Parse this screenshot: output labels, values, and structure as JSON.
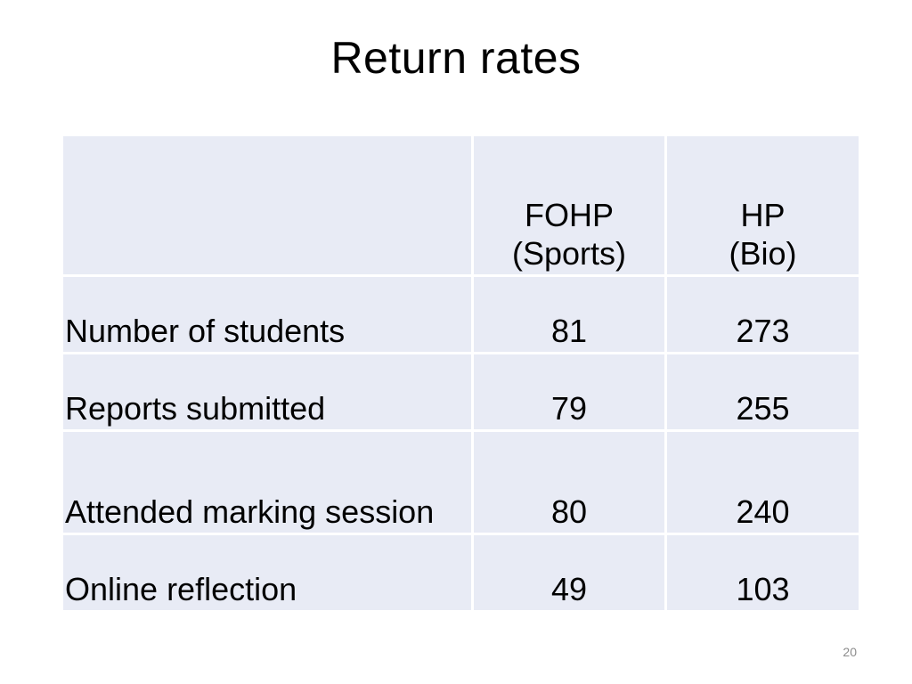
{
  "slide": {
    "title": "Return rates",
    "page_number": "20"
  },
  "table": {
    "columns": [
      {
        "line1": "FOHP",
        "line2": "(Sports)"
      },
      {
        "line1": "HP",
        "line2": "(Bio)"
      }
    ],
    "rows": [
      {
        "label": "Number of students",
        "values": [
          "81",
          "273"
        ]
      },
      {
        "label": "Reports submitted",
        "values": [
          "79",
          "255"
        ]
      },
      {
        "label": "Attended marking session",
        "values": [
          "80",
          "240"
        ]
      },
      {
        "label": "Online reflection",
        "values": [
          "49",
          "103"
        ]
      }
    ]
  },
  "colors": {
    "cell_background": "#e8ebf5",
    "grid_lines": "#ffffff"
  }
}
